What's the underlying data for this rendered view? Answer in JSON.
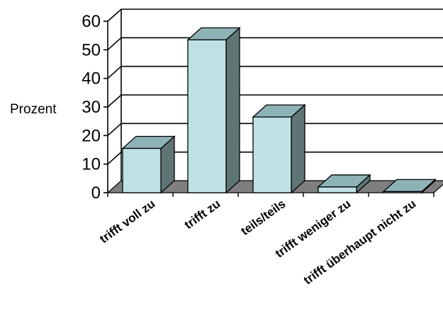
{
  "chart_data": {
    "type": "bar",
    "categories": [
      "trifft voll zu",
      "trifft zu",
      "teils/teils",
      "trifft weniger zu",
      "trifft überhaupt nicht zu"
    ],
    "values": [
      15.5,
      53.5,
      26.5,
      2,
      0.4
    ],
    "title": "",
    "xlabel": "",
    "ylabel": "Prozent",
    "ylim": [
      0,
      60
    ],
    "yticks": [
      0,
      10,
      20,
      30,
      40,
      50,
      60
    ],
    "grid": true,
    "style": "3d",
    "colors": {
      "bar_front": "#bfe1e3",
      "bar_top": "#8db3b6",
      "bar_side": "#5f7475",
      "floor": "#7f7f7f",
      "grid": "#000000",
      "wall": "#ffffff"
    }
  }
}
